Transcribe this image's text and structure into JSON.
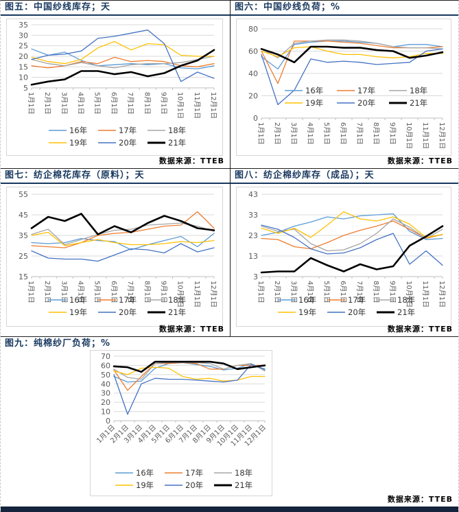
{
  "palette": {
    "title_color": "#17375E",
    "separator_color": "#1F1F1F",
    "frame_border_color": "#D6D6D6",
    "grid_color": "#D9D9D9",
    "axis_color": "#BFBFBF",
    "tick_label_color": "#595959",
    "legend_text_color": "#333333",
    "source_text_color": "#000000",
    "bottom_bar_color": "#15233C",
    "page_edge_dash_color": "#C9C9C9"
  },
  "chart_data": [
    {
      "id": "fig5",
      "type": "line",
      "title": "图五：中国纱线库存；天",
      "source": "数据来源：TTEB",
      "categories": [
        "1月1日",
        "2月1日",
        "3月1日",
        "4月1日",
        "5月1日",
        "6月1日",
        "7月1日",
        "8月1日",
        "9月1日",
        "10月1日",
        "11月1日",
        "12月1日"
      ],
      "ylim": [
        5,
        35
      ],
      "yticks": [
        5,
        10,
        15,
        20,
        25,
        30,
        35
      ],
      "grid": true,
      "x_label_rotation": 90,
      "legend_position": "below",
      "series": [
        {
          "name": "16年",
          "color": "#5B9BD5",
          "width": 1.3,
          "values": [
            23.5,
            20.5,
            22,
            18,
            15.5,
            16,
            16.5,
            16,
            16.5,
            14.5,
            14,
            15.5
          ]
        },
        {
          "name": "17年",
          "color": "#ED7D31",
          "width": 1.3,
          "values": [
            15.5,
            14.5,
            15.5,
            17.5,
            16.5,
            19.5,
            17.5,
            18,
            17.5,
            15.5,
            15,
            16.5
          ]
        },
        {
          "name": "18年",
          "color": "#A5A5A5",
          "width": 1.3,
          "values": [
            18.5,
            16.5,
            15.5,
            17,
            15.5,
            14.5,
            16,
            16.5,
            16.5,
            17,
            18.5,
            20
          ]
        },
        {
          "name": "19年",
          "color": "#FFC000",
          "width": 1.3,
          "values": [
            19.5,
            17.5,
            16.5,
            18.5,
            24,
            27,
            23,
            26,
            25.5,
            20.5,
            20,
            20
          ]
        },
        {
          "name": "20年",
          "color": "#4472C4",
          "width": 1.3,
          "values": [
            18.5,
            20.5,
            21,
            22.5,
            28.5,
            29.5,
            31,
            32.5,
            26,
            8,
            12.5,
            9.5
          ]
        },
        {
          "name": "21年",
          "color": "#000000",
          "width": 2.6,
          "values": [
            6.5,
            8,
            9,
            13,
            13,
            11.5,
            12.5,
            10.5,
            12,
            15.5,
            18,
            23
          ]
        }
      ]
    },
    {
      "id": "fig6",
      "type": "line",
      "title": "图六：中国纱线负荷；%",
      "source": "数据来源：TTEB",
      "categories": [
        "1月1日",
        "2月1日",
        "3月1日",
        "4月1日",
        "5月1日",
        "6月1日",
        "7月1日",
        "8月1日",
        "9月1日",
        "10月1日",
        "11月1日",
        "12月1日"
      ],
      "ylim": [
        0,
        80
      ],
      "yticks": [
        0,
        20,
        40,
        60,
        80
      ],
      "grid": true,
      "x_label_rotation": 90,
      "legend_position": "inside",
      "series": [
        {
          "name": "16年",
          "color": "#5B9BD5",
          "width": 1.3,
          "values": [
            55,
            44,
            66,
            68,
            69,
            69,
            68,
            67,
            64,
            66,
            66,
            64
          ]
        },
        {
          "name": "17年",
          "color": "#ED7D31",
          "width": 1.3,
          "values": [
            60,
            31,
            69,
            69,
            69,
            68,
            67,
            65,
            63,
            63,
            63,
            64
          ]
        },
        {
          "name": "18年",
          "color": "#A5A5A5",
          "width": 1.3,
          "values": [
            62,
            54,
            67,
            69,
            70,
            70,
            69,
            67,
            64,
            63,
            63,
            62
          ]
        },
        {
          "name": "19年",
          "color": "#FFC000",
          "width": 1.3,
          "values": [
            60,
            55,
            63,
            64,
            60,
            57,
            57,
            55,
            54,
            55,
            58,
            58
          ]
        },
        {
          "name": "20年",
          "color": "#4472C4",
          "width": 1.3,
          "values": [
            57,
            12,
            25,
            53,
            50,
            51,
            50,
            48,
            49,
            50,
            60,
            62
          ]
        },
        {
          "name": "21年",
          "color": "#000000",
          "width": 2.6,
          "values": [
            62,
            57,
            50,
            64,
            64,
            63,
            63,
            61,
            60,
            54,
            56,
            59
          ]
        }
      ]
    },
    {
      "id": "fig7",
      "type": "line",
      "title": "图七：纺企棉花库存（原料）；天",
      "source": "数据来源：TTEB",
      "categories": [
        "1月1日",
        "2月1日",
        "3月1日",
        "4月1日",
        "5月1日",
        "6月1日",
        "7月1日",
        "8月1日",
        "9月1日",
        "10月1日",
        "11月1日",
        "12月1日"
      ],
      "ylim": [
        15,
        55
      ],
      "yticks": [
        15,
        25,
        35,
        45,
        55
      ],
      "grid": true,
      "x_label_rotation": 90,
      "legend_position": "below",
      "series": [
        {
          "name": "16年",
          "color": "#5B9BD5",
          "width": 1.3,
          "values": [
            31.5,
            31,
            31.5,
            33.5,
            32.5,
            32,
            28,
            30.5,
            32.5,
            34.5,
            29.5,
            36
          ]
        },
        {
          "name": "17年",
          "color": "#ED7D31",
          "width": 1.3,
          "values": [
            30,
            29.5,
            29,
            31.5,
            35,
            36,
            36.5,
            38,
            39.5,
            40,
            46.5,
            38.5
          ]
        },
        {
          "name": "18年",
          "color": "#A5A5A5",
          "width": 1.3,
          "values": [
            35.5,
            38,
            30.5,
            33,
            35.5,
            37.5,
            38,
            40,
            40.5,
            41,
            39.5,
            37
          ]
        },
        {
          "name": "19年",
          "color": "#FFC000",
          "width": 1.3,
          "values": [
            35,
            36.5,
            30,
            31.5,
            33,
            31.5,
            30.5,
            30.5,
            31,
            32,
            31.5,
            32.5
          ]
        },
        {
          "name": "20年",
          "color": "#4472C4",
          "width": 1.3,
          "values": [
            27.5,
            24,
            23.5,
            23.5,
            22.5,
            25.5,
            28.5,
            28,
            26.5,
            31,
            27,
            29
          ]
        },
        {
          "name": "21年",
          "color": "#000000",
          "width": 2.6,
          "values": [
            38.5,
            44,
            42,
            45.5,
            35.5,
            39.5,
            36.5,
            41,
            44.5,
            42,
            38.5,
            37.5
          ]
        }
      ]
    },
    {
      "id": "fig8",
      "type": "line",
      "title": "图八：纺企棉纱库存（成品）；天",
      "source": "数据来源：TTEB",
      "categories": [
        "1月1日",
        "2月1日",
        "3月1日",
        "4月1日",
        "5月1日",
        "6月1日",
        "7月1日",
        "8月1日",
        "9月1日",
        "10月1日",
        "11月1日",
        "12月1日"
      ],
      "ylim": [
        3,
        43
      ],
      "yticks": [
        3,
        13,
        23,
        33,
        43
      ],
      "grid": true,
      "x_label_rotation": 90,
      "legend_position": "below",
      "series": [
        {
          "name": "16年",
          "color": "#5B9BD5",
          "width": 1.3,
          "values": [
            23,
            24.5,
            27.5,
            29.5,
            32,
            31,
            32.5,
            33,
            33.5,
            25,
            21,
            21.5
          ]
        },
        {
          "name": "17年",
          "color": "#ED7D31",
          "width": 1.3,
          "values": [
            21.5,
            21,
            17.5,
            16.5,
            19.5,
            23,
            25.5,
            27.5,
            30,
            26,
            21.5,
            23.5
          ]
        },
        {
          "name": "18年",
          "color": "#A5A5A5",
          "width": 1.3,
          "values": [
            27.5,
            25,
            26,
            19,
            15.5,
            16,
            19,
            24,
            31,
            27,
            21.5,
            26
          ]
        },
        {
          "name": "19年",
          "color": "#FFC000",
          "width": 1.3,
          "values": [
            26.5,
            24,
            26.5,
            22,
            28,
            34.5,
            31,
            30,
            32,
            28.5,
            22,
            23.5
          ]
        },
        {
          "name": "20年",
          "color": "#4472C4",
          "width": 1.3,
          "values": [
            28,
            26,
            22,
            16.5,
            14,
            14.5,
            17,
            21,
            24,
            9,
            15.5,
            8.5
          ]
        },
        {
          "name": "21年",
          "color": "#000000",
          "width": 2.6,
          "values": [
            5,
            5.5,
            5.5,
            12,
            8.5,
            5.5,
            9,
            6.5,
            8,
            18,
            22.5,
            27.5
          ]
        }
      ]
    },
    {
      "id": "fig9",
      "type": "line",
      "title": "图九：纯棉纱厂负荷；%",
      "source": "数据来源：TTEB",
      "categories": [
        "1月1日",
        "2月1日",
        "3月1日",
        "4月1日",
        "5月1日",
        "6月1日",
        "7月1日",
        "8月1日",
        "9月1日",
        "10月1日",
        "11月1日",
        "12月1日"
      ],
      "ylim": [
        0,
        70
      ],
      "yticks": [
        0,
        10,
        20,
        30,
        40,
        50,
        60,
        70
      ],
      "grid": true,
      "x_label_rotation": -45,
      "legend_position": "below",
      "series": [
        {
          "name": "16年",
          "color": "#5B9BD5",
          "width": 1.3,
          "values": [
            48,
            42,
            43,
            57,
            62,
            63,
            61,
            59,
            55,
            57,
            62,
            55
          ]
        },
        {
          "name": "17年",
          "color": "#ED7D31",
          "width": 1.3,
          "values": [
            55,
            33,
            48,
            62,
            62,
            63,
            62,
            56,
            56,
            60,
            60,
            60
          ]
        },
        {
          "name": "18年",
          "color": "#A5A5A5",
          "width": 1.3,
          "values": [
            56,
            47,
            45,
            62,
            63,
            63,
            63,
            62,
            56,
            60,
            62,
            54
          ]
        },
        {
          "name": "19年",
          "color": "#FFC000",
          "width": 1.3,
          "values": [
            54,
            50,
            57,
            58,
            57,
            48,
            45,
            46,
            43,
            44,
            48,
            48
          ]
        },
        {
          "name": "20年",
          "color": "#4472C4",
          "width": 1.3,
          "values": [
            50,
            7,
            40,
            46,
            45,
            45,
            44,
            43,
            42,
            44,
            61,
            56
          ]
        },
        {
          "name": "21年",
          "color": "#000000",
          "width": 2.6,
          "values": [
            59,
            58,
            53,
            64,
            64,
            64,
            64,
            64,
            62,
            56,
            58,
            60
          ]
        }
      ]
    }
  ]
}
